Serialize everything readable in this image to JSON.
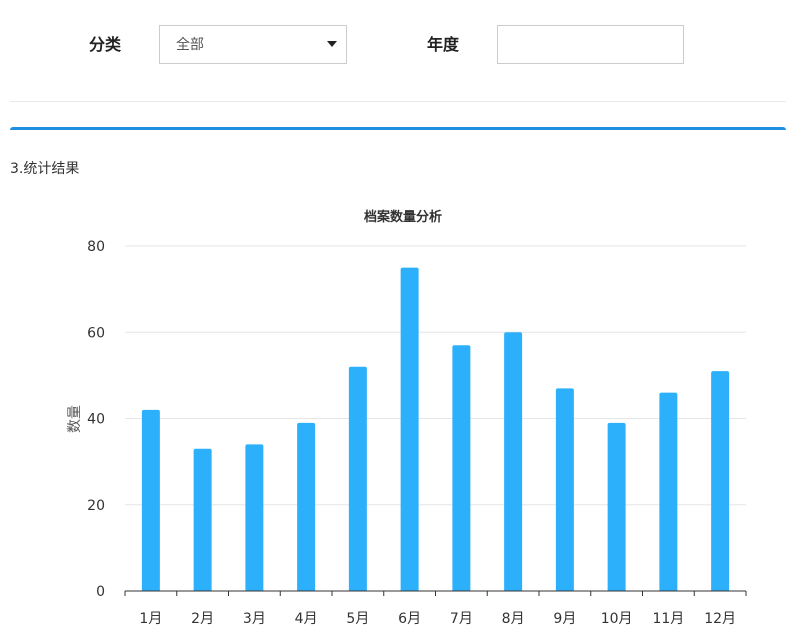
{
  "filters": {
    "category_label": "分类",
    "category_value": "全部",
    "year_label": "年度",
    "year_value": ""
  },
  "results": {
    "section_title": "3.统计结果"
  },
  "chart_data": {
    "type": "bar",
    "title": "档案数量分析",
    "xlabel": "",
    "ylabel": "数量",
    "categories": [
      "1月",
      "2月",
      "3月",
      "4月",
      "5月",
      "6月",
      "7月",
      "8月",
      "9月",
      "10月",
      "11月",
      "12月"
    ],
    "values": [
      42,
      33,
      34,
      39,
      52,
      75,
      57,
      60,
      47,
      39,
      46,
      51
    ],
    "ylim": [
      0,
      80
    ],
    "yticks": [
      0,
      20,
      40,
      60,
      80
    ],
    "grid": true,
    "bar_color": "#2db0fc"
  }
}
